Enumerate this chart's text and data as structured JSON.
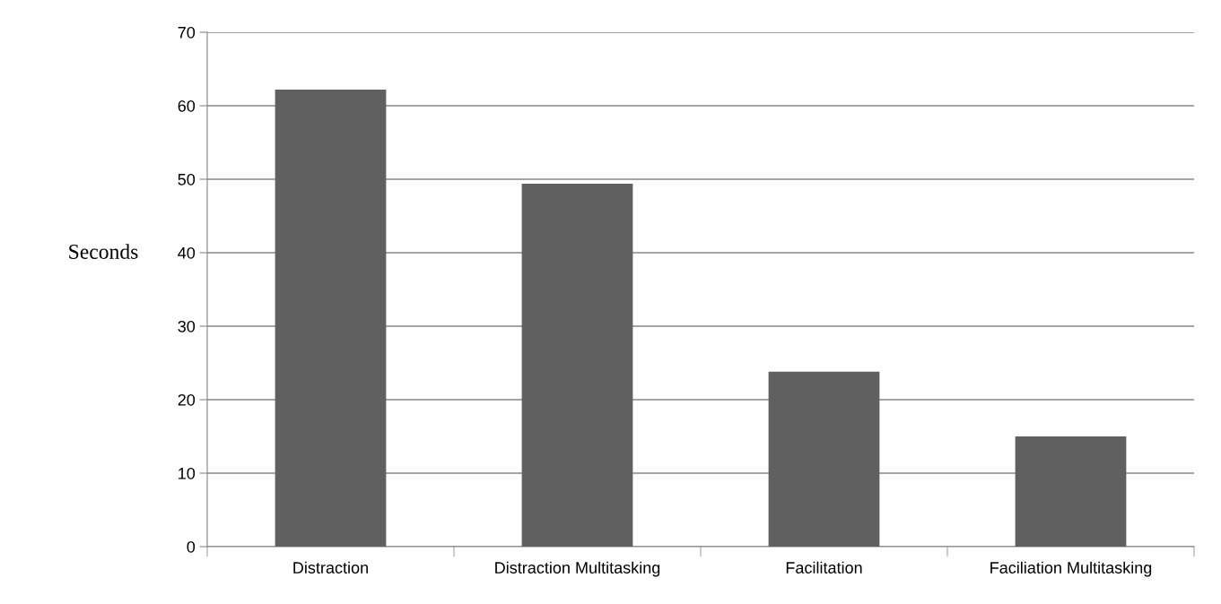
{
  "chart_data": {
    "type": "bar",
    "ylabel": "Seconds",
    "categories": [
      "Distraction",
      "Distraction Multitasking",
      "Facilitation",
      "Faciliation Multitasking"
    ],
    "values": [
      62.2,
      49.4,
      23.8,
      15.0
    ],
    "color": "#606060",
    "ylim": [
      0,
      70
    ],
    "yticks": [
      0,
      10,
      20,
      30,
      40,
      50,
      60,
      70
    ],
    "grid": "y",
    "legend": false
  }
}
